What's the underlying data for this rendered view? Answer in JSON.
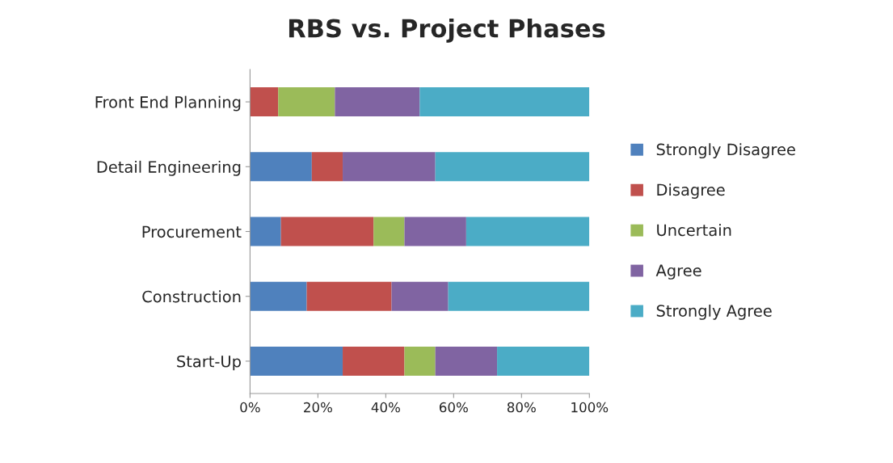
{
  "chart_data": {
    "type": "bar",
    "orientation": "horizontal",
    "stacked": true,
    "title": "RBS vs. Project Phases",
    "categories": [
      "Front End Planning",
      "Detail Engineering",
      "Procurement",
      "Construction",
      "Start-Up"
    ],
    "series": [
      {
        "name": "Strongly Disagree",
        "color": "#4f81bd",
        "values": [
          0,
          18.2,
          9.1,
          16.7,
          27.3
        ]
      },
      {
        "name": "Disagree",
        "color": "#c0504d",
        "values": [
          8.3,
          9.1,
          27.3,
          25,
          18.2
        ]
      },
      {
        "name": "Uncertain",
        "color": "#9bbb59",
        "values": [
          16.7,
          0,
          9.1,
          0,
          9.1
        ]
      },
      {
        "name": "Agree",
        "color": "#8064a2",
        "values": [
          25,
          27.3,
          18.2,
          16.7,
          18.2
        ]
      },
      {
        "name": "Strongly Agree",
        "color": "#4bacc6",
        "values": [
          50,
          45.4,
          36.3,
          41.6,
          27.2
        ]
      }
    ],
    "xlim": [
      0,
      100
    ],
    "xticks": [
      {
        "value": 0,
        "label": "0%"
      },
      {
        "value": 20,
        "label": "20%"
      },
      {
        "value": 40,
        "label": "40%"
      },
      {
        "value": 60,
        "label": "60%"
      },
      {
        "value": 80,
        "label": "80%"
      },
      {
        "value": 100,
        "label": "100%"
      }
    ],
    "grid": false,
    "legend": "right"
  }
}
